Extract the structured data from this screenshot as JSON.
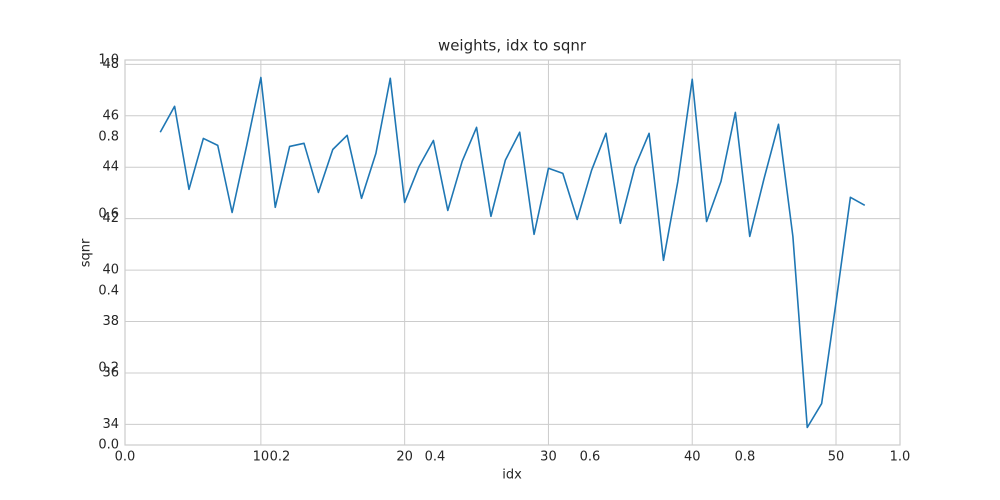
{
  "chart_data": [
    {
      "type": "axes",
      "xlim": [
        0,
        1
      ],
      "ylim": [
        0,
        1
      ],
      "xticks": [
        {
          "value": 0,
          "label": "0.0"
        },
        0.2,
        0.4,
        0.6,
        0.8,
        {
          "value": 1,
          "label": "1.0"
        }
      ],
      "yticks": [
        {
          "value": 0,
          "label": "0.0"
        },
        0.2,
        0.4,
        0.6,
        0.8,
        {
          "value": 1,
          "label": "1.0"
        }
      ],
      "grid": false
    },
    {
      "type": "line",
      "title": "weights, idx to sqnr",
      "x_label": "idx",
      "y_label": "sqnr",
      "x": [
        3,
        4,
        5,
        6,
        7,
        8,
        9,
        10,
        11,
        12,
        13,
        14,
        15,
        16,
        17,
        18,
        19,
        20,
        21,
        22,
        23,
        24,
        25,
        26,
        27,
        28,
        29,
        30,
        31,
        32,
        33,
        34,
        35,
        36,
        37,
        38,
        39,
        40,
        41,
        42,
        43,
        44,
        45,
        46,
        47,
        48,
        49,
        50,
        51,
        52
      ],
      "values": [
        45.36,
        46.37,
        43.14,
        45.12,
        44.85,
        42.24,
        44.81,
        47.49,
        42.44,
        44.81,
        44.93,
        43.02,
        44.69,
        45.24,
        42.79,
        44.54,
        47.46,
        42.63,
        44.03,
        45.04,
        42.32,
        44.23,
        45.55,
        42.09,
        44.27,
        45.36,
        41.39,
        43.96,
        43.76,
        41.97,
        43.88,
        45.32,
        41.82,
        43.99,
        45.32,
        40.38,
        43.45,
        47.42,
        41.89,
        43.45,
        46.13,
        41.31,
        43.57,
        45.67,
        41.31,
        33.88,
        34.81,
        38.74,
        42.83,
        42.52
      ],
      "color": "#1f77b4",
      "xlim": [
        0.55,
        54.45
      ],
      "ylim": [
        33.2,
        48.17
      ],
      "xticks": [
        10,
        20,
        30,
        40,
        50
      ],
      "yticks": [
        34,
        36,
        38,
        40,
        42,
        44,
        46,
        48
      ],
      "grid": true
    }
  ]
}
